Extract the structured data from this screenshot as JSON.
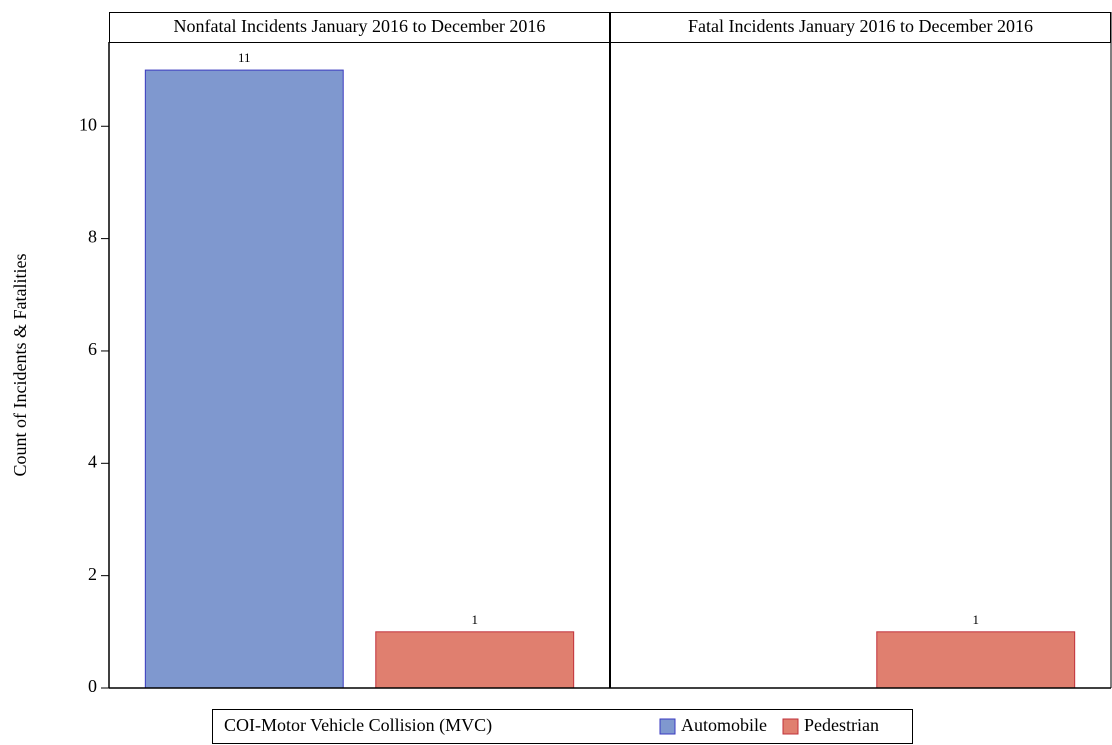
{
  "chart_data": {
    "type": "bar",
    "ylabel": "Count of Incidents & Fatalities",
    "categories": [
      "Nonfatal Incidents January 2016 to December 2016",
      "Fatal Incidents January 2016 to December 2016"
    ],
    "series": [
      {
        "name": "Automobile",
        "color": "#7f98cf",
        "edge": "#3a3ac0",
        "values": [
          11,
          null
        ]
      },
      {
        "name": "Pedestrian",
        "color": "#e07f6f",
        "edge": "#c0303a",
        "values": [
          1,
          1
        ]
      }
    ],
    "legend_title": "COI-Motor Vehicle Collision (MVC)",
    "ylim": [
      0,
      11.5
    ],
    "yticks": [
      0,
      2,
      4,
      6,
      8,
      10
    ]
  }
}
